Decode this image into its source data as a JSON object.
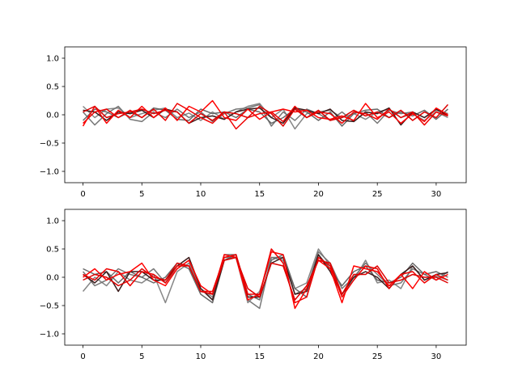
{
  "chart_data": [
    {
      "type": "line",
      "xlim": [
        -1.55,
        32.55
      ],
      "ylim": [
        -1.2,
        1.2
      ],
      "xticks": [
        0,
        5,
        10,
        15,
        20,
        25,
        30
      ],
      "xtick_labels": [
        "0",
        "5",
        "10",
        "15",
        "20",
        "25",
        "30"
      ],
      "yticks": [
        1.0,
        0.5,
        0.0,
        -0.5,
        -1.0
      ],
      "ytick_labels": [
        "1.0",
        "0.5",
        "0.0",
        "−0.5",
        "−1.0"
      ],
      "x": [
        0,
        1,
        2,
        3,
        4,
        5,
        6,
        7,
        8,
        9,
        10,
        11,
        12,
        13,
        14,
        15,
        16,
        17,
        18,
        19,
        20,
        21,
        22,
        23,
        24,
        25,
        26,
        27,
        28,
        29,
        30,
        31
      ],
      "series": [
        {
          "color": "#808080",
          "values": [
            0.15,
            -0.05,
            0.1,
            0.12,
            -0.05,
            0.02,
            0.08,
            0.12,
            -0.05,
            0.03,
            -0.1,
            0.05,
            -0.08,
            0.05,
            0.15,
            0.2,
            -0.05,
            0.1,
            -0.25,
            0.02,
            0.05,
            0.08,
            -0.05,
            0.02,
            -0.08,
            0.05,
            0.1,
            -0.05,
            0.02,
            -0.1,
            0.05,
            -0.05
          ]
        },
        {
          "color": "#707070",
          "values": [
            0.05,
            -0.18,
            0.02,
            0.15,
            -0.08,
            -0.12,
            0.05,
            -0.05,
            0.1,
            -0.05,
            0.05,
            -0.12,
            0.02,
            0.1,
            0.12,
            0.18,
            -0.2,
            0.05,
            -0.1,
            0.1,
            0.02,
            -0.1,
            0.05,
            -0.12,
            0.05,
            -0.15,
            0.08,
            0.02,
            0.05,
            -0.05,
            0.08,
            0.02
          ]
        },
        {
          "color": "#606060",
          "values": [
            -0.1,
            0.1,
            0.05,
            -0.05,
            0.05,
            -0.05,
            0.12,
            0.08,
            -0.08,
            -0.1,
            0.1,
            0.02,
            0.05,
            -0.05,
            0.1,
            0.05,
            -0.15,
            -0.05,
            0.1,
            0.05,
            -0.1,
            0.05,
            -0.2,
            0.02,
            0.08,
            0.1,
            -0.05,
            0.05,
            -0.02,
            0.08,
            -0.08,
            0.1
          ]
        },
        {
          "color": "#3a1a1a",
          "values": [
            0.08,
            0.05,
            -0.1,
            0.05,
            0.02,
            0.08,
            -0.05,
            0.1,
            0.05,
            -0.15,
            -0.05,
            -0.02,
            -0.08,
            0.05,
            0.1,
            0.12,
            -0.05,
            -0.15,
            0.12,
            0.08,
            0.02,
            0.1,
            -0.1,
            -0.12,
            0.05,
            0.02,
            0.12,
            -0.18,
            0.05,
            -0.05,
            0.1,
            -0.02
          ]
        },
        {
          "color": "#ff0000",
          "values": [
            -0.2,
            0.15,
            -0.15,
            0.08,
            -0.05,
            0.15,
            -0.05,
            0.12,
            -0.1,
            0.15,
            0.05,
            0.25,
            -0.05,
            -0.1,
            0.1,
            -0.08,
            0.05,
            0.1,
            0.05,
            0.08,
            -0.05,
            -0.08,
            -0.02,
            -0.1,
            0.2,
            -0.05,
            0.05,
            -0.15,
            0.02,
            -0.12,
            0.12,
            0.0
          ]
        },
        {
          "color": "#ee0000",
          "values": [
            -0.15,
            0.05,
            0.1,
            -0.05,
            0.08,
            -0.05,
            0.1,
            -0.1,
            0.2,
            0.08,
            -0.05,
            -0.15,
            0.05,
            -0.25,
            -0.05,
            0.02,
            0.05,
            -0.12,
            0.15,
            -0.05,
            0.05,
            0.02,
            -0.15,
            0.05,
            0.02,
            -0.08,
            0.1,
            -0.05,
            0.05,
            -0.18,
            0.05,
            -0.02
          ]
        },
        {
          "color": "#dd0000",
          "values": [
            0.05,
            0.15,
            -0.05,
            0.02,
            0.05,
            0.1,
            0.02,
            0.08,
            0.05,
            -0.15,
            0.02,
            -0.1,
            0.05,
            0.02,
            -0.05,
            0.15,
            0.02,
            -0.2,
            0.1,
            -0.05,
            0.08,
            -0.1,
            -0.05,
            0.08,
            -0.02,
            0.05,
            -0.05,
            0.08,
            -0.1,
            0.05,
            -0.05,
            0.18
          ]
        }
      ]
    },
    {
      "type": "line",
      "xlim": [
        -1.55,
        32.55
      ],
      "ylim": [
        -1.2,
        1.2
      ],
      "xticks": [
        0,
        5,
        10,
        15,
        20,
        25,
        30
      ],
      "xtick_labels": [
        "0",
        "5",
        "10",
        "15",
        "20",
        "25",
        "30"
      ],
      "yticks": [
        1.0,
        0.5,
        0.0,
        -0.5,
        -1.0
      ],
      "ytick_labels": [
        "1.0",
        "0.5",
        "0.0",
        "−0.5",
        "−1.0"
      ],
      "x": [
        0,
        1,
        2,
        3,
        4,
        5,
        6,
        7,
        8,
        9,
        10,
        11,
        12,
        13,
        14,
        15,
        16,
        17,
        18,
        19,
        20,
        21,
        22,
        23,
        24,
        25,
        26,
        27,
        28,
        29,
        30,
        31
      ],
      "series": [
        {
          "color": "#808080",
          "values": [
            -0.25,
            0.0,
            -0.15,
            0.1,
            -0.05,
            -0.1,
            0.05,
            -0.45,
            0.1,
            0.25,
            -0.2,
            -0.35,
            0.35,
            0.35,
            -0.45,
            -0.25,
            0.35,
            0.3,
            -0.2,
            -0.1,
            0.5,
            0.2,
            -0.3,
            -0.05,
            0.3,
            -0.1,
            -0.05,
            -0.2,
            0.2,
            -0.05,
            0.02,
            -0.05
          ]
        },
        {
          "color": "#707070",
          "values": [
            0.1,
            -0.15,
            -0.05,
            0.15,
            0.05,
            0.0,
            0.15,
            -0.1,
            0.15,
            0.3,
            -0.2,
            -0.4,
            0.4,
            0.4,
            -0.4,
            -0.55,
            0.35,
            0.35,
            -0.3,
            -0.2,
            0.45,
            0.25,
            -0.2,
            0.0,
            0.25,
            0.05,
            -0.15,
            -0.1,
            0.15,
            0.05,
            -0.05,
            0.1
          ]
        },
        {
          "color": "#606060",
          "values": [
            0.15,
            0.05,
            0.1,
            -0.1,
            0.1,
            0.0,
            -0.1,
            0.0,
            0.25,
            0.15,
            -0.3,
            -0.45,
            0.3,
            0.4,
            -0.3,
            -0.4,
            0.3,
            0.4,
            -0.2,
            -0.35,
            0.4,
            0.15,
            -0.15,
            0.1,
            0.2,
            -0.05,
            -0.1,
            0.0,
            0.25,
            0.05,
            0.1,
            0.0
          ]
        },
        {
          "color": "#3a1a1a",
          "values": [
            0.05,
            -0.1,
            0.1,
            -0.25,
            0.1,
            0.1,
            -0.05,
            -0.05,
            0.2,
            0.35,
            -0.2,
            -0.4,
            0.3,
            0.35,
            -0.35,
            -0.35,
            0.25,
            0.35,
            -0.3,
            -0.25,
            0.4,
            0.1,
            -0.3,
            0.0,
            0.1,
            0.0,
            -0.2,
            0.05,
            0.2,
            -0.05,
            0.05,
            0.08
          ]
        },
        {
          "color": "#ff0000",
          "values": [
            0.0,
            0.15,
            -0.05,
            0.05,
            0.1,
            0.25,
            -0.05,
            -0.15,
            0.15,
            0.3,
            -0.15,
            -0.3,
            0.4,
            0.35,
            -0.4,
            -0.3,
            0.45,
            0.4,
            -0.55,
            -0.2,
            0.3,
            0.15,
            -0.45,
            0.2,
            0.15,
            0.1,
            -0.15,
            0.05,
            -0.2,
            0.1,
            -0.05,
            0.05
          ]
        },
        {
          "color": "#ee0000",
          "values": [
            0.05,
            -0.05,
            0.15,
            0.1,
            -0.15,
            0.1,
            0.05,
            -0.1,
            0.2,
            0.2,
            -0.25,
            -0.25,
            0.35,
            0.4,
            -0.3,
            -0.3,
            0.5,
            0.25,
            -0.45,
            -0.35,
            0.35,
            0.2,
            -0.35,
            -0.05,
            0.2,
            0.15,
            -0.2,
            0.05,
            0.1,
            -0.1,
            0.05,
            -0.05
          ]
        },
        {
          "color": "#dd0000",
          "values": [
            -0.05,
            0.05,
            0.0,
            -0.15,
            -0.05,
            0.15,
            0.0,
            -0.05,
            0.25,
            0.2,
            -0.25,
            -0.3,
            0.3,
            0.35,
            -0.2,
            -0.35,
            0.25,
            0.2,
            -0.4,
            -0.15,
            0.3,
            0.25,
            -0.3,
            0.05,
            0.05,
            0.2,
            -0.1,
            -0.05,
            0.05,
            0.0,
            0.0,
            -0.1
          ]
        }
      ]
    }
  ]
}
